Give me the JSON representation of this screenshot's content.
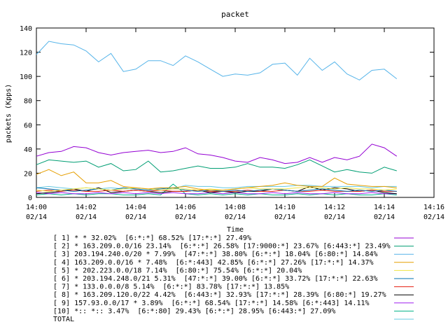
{
  "chart_data": {
    "type": "line",
    "title": "packet",
    "xlabel": "Time",
    "ylabel": "packets (Kpps)",
    "ylim": [
      0,
      140
    ],
    "yticks": [
      0,
      20,
      40,
      60,
      80,
      100,
      120,
      140
    ],
    "xlim": [
      0,
      16
    ],
    "xticks": [
      {
        "x": 0,
        "time": "14:00",
        "date": "02/14"
      },
      {
        "x": 2,
        "time": "14:02",
        "date": "02/14"
      },
      {
        "x": 4,
        "time": "14:04",
        "date": "02/14"
      },
      {
        "x": 6,
        "time": "14:06",
        "date": "02/14"
      },
      {
        "x": 8,
        "time": "14:08",
        "date": "02/14"
      },
      {
        "x": 10,
        "time": "14:10",
        "date": "02/14"
      },
      {
        "x": 12,
        "time": "14:12",
        "date": "02/14"
      },
      {
        "x": 14,
        "time": "14:14",
        "date": "02/14"
      },
      {
        "x": 16,
        "time": "14:16",
        "date": "02/14"
      }
    ],
    "grid": false,
    "legend_position": "bottom",
    "x": [
      0,
      0.5,
      1,
      1.5,
      2,
      2.5,
      3,
      3.5,
      4,
      4.5,
      5,
      5.5,
      6,
      6.5,
      7,
      7.5,
      8,
      8.5,
      9,
      9.5,
      10,
      10.5,
      11,
      11.5,
      12,
      12.5,
      13,
      13.5,
      14,
      14.5
    ],
    "series": [
      {
        "name": "[ 1] * * 32.02%  [6:*:*] 68.52% [17:*:*] 27.49%",
        "color": "#9400d3",
        "values": [
          34,
          37,
          38,
          42,
          41,
          37,
          35,
          37,
          38,
          39,
          37,
          38,
          41,
          36,
          35,
          33,
          30,
          29,
          33,
          31,
          28,
          29,
          33,
          29,
          33,
          31,
          34,
          44,
          41,
          34
        ]
      },
      {
        "name": "[ 2] * 163.209.0.0/16 23.14%  [6:*:*] 26.58% [17:9000:*] 23.67% [6:443:*] 23.49%",
        "color": "#009e73",
        "values": [
          27,
          31,
          30,
          29,
          30,
          25,
          28,
          22,
          23,
          30,
          21,
          22,
          24,
          26,
          24,
          24,
          25,
          28,
          25,
          25,
          24,
          27,
          31,
          26,
          21,
          23,
          21,
          20,
          25,
          22
        ]
      },
      {
        "name": "[ 3] 203.194.240.0/20 * 7.99%  [47:*:*] 38.80% [6:*:*] 18.04% [6:80:*] 14.84%",
        "color": "#56b4e9",
        "values": [
          118,
          129,
          127,
          126,
          121,
          112,
          119,
          104,
          106,
          113,
          113,
          109,
          117,
          112,
          106,
          100,
          102,
          101,
          103,
          110,
          111,
          101,
          115,
          105,
          112,
          102,
          97,
          105,
          106,
          98
        ]
      },
      {
        "name": "[ 4] 163.209.0.0/16 * 7.48%  [6:*:443] 42.85% [6:*:*] 27.26% [17:*:*] 14.37%",
        "color": "#e69f00",
        "values": [
          19,
          23,
          18,
          21,
          12,
          12,
          14,
          9,
          8,
          7,
          8,
          8,
          9,
          7,
          6,
          6,
          7,
          8,
          9,
          10,
          12,
          10,
          9,
          9,
          16,
          11,
          10,
          9,
          9,
          8
        ]
      },
      {
        "name": "[ 5] * 202.223.0.0/18 7.14%  [6:80:*] 75.54% [6:*:*] 20.04%",
        "color": "#f0e442",
        "values": [
          6,
          5,
          6,
          7,
          8,
          7,
          6,
          7,
          8,
          7,
          6,
          7,
          7,
          6,
          7,
          6,
          7,
          8,
          7,
          7,
          7,
          8,
          8,
          8,
          7,
          8,
          7,
          7,
          6,
          7
        ]
      },
      {
        "name": "[ 6] * 203.194.248.0/21 5.31%  [47:*:*] 39.00% [6:*:*] 33.72% [17:*:*] 22.63%",
        "color": "#0072b2",
        "values": [
          8,
          7,
          6,
          5,
          6,
          7,
          6,
          8,
          7,
          6,
          7,
          8,
          6,
          5,
          6,
          5,
          6,
          5,
          6,
          7,
          6,
          5,
          6,
          7,
          6,
          5,
          6,
          5,
          6,
          5
        ]
      },
      {
        "name": "[ 7] * 133.0.0.0/8 5.14%  [6:*:*] 83.78% [17:*:*] 13.85%",
        "color": "#e51e10",
        "values": [
          5,
          6,
          5,
          6,
          5,
          5,
          6,
          5,
          6,
          5,
          6,
          5,
          5,
          6,
          5,
          5,
          5,
          6,
          5,
          5,
          6,
          5,
          5,
          6,
          5,
          5,
          5,
          6,
          5,
          5
        ]
      },
      {
        "name": "[ 8] * 163.209.120.0/22 4.42%  [6:443:*] 32.93% [17:*:*] 28.39% [6:80:*] 19.27%",
        "color": "#000000",
        "values": [
          3,
          4,
          5,
          7,
          5,
          8,
          4,
          5,
          6,
          5,
          4,
          5,
          5,
          6,
          4,
          5,
          4,
          5,
          5,
          7,
          6,
          5,
          9,
          6,
          8,
          7,
          5,
          6,
          4,
          3
        ]
      },
      {
        "name": "[ 9] 157.93.0.0/17 * 3.89%  [6:*:*] 68.54% [17:*:*] 14.58% [6:*:443] 14.11%",
        "color": "#a020f0",
        "values": [
          4,
          3,
          4,
          3,
          3,
          4,
          3,
          4,
          3,
          4,
          3,
          4,
          3,
          3,
          4,
          3,
          4,
          3,
          3,
          4,
          3,
          4,
          3,
          3,
          4,
          3,
          3,
          4,
          3,
          3
        ]
      },
      {
        "name": "[10] *:: *:: 3.47%  [6:*:80] 29.43% [6:*:*] 28.95% [6:443:*] 27.09%",
        "color": "#00b386",
        "values": [
          2,
          3,
          2,
          3,
          2,
          3,
          3,
          2,
          2,
          3,
          2,
          11,
          3,
          2,
          3,
          2,
          3,
          2,
          3,
          2,
          2,
          3,
          2,
          3,
          2,
          3,
          2,
          2,
          3,
          2
        ]
      },
      {
        "name": "TOTAL",
        "color": "#66c8e0",
        "values": [
          8,
          9,
          8,
          7,
          8,
          7,
          8,
          7,
          7,
          6,
          8,
          7,
          10,
          9,
          9,
          8,
          8,
          9,
          9,
          9,
          9,
          10,
          10,
          9,
          9,
          9,
          9,
          8,
          9,
          9
        ]
      }
    ]
  }
}
